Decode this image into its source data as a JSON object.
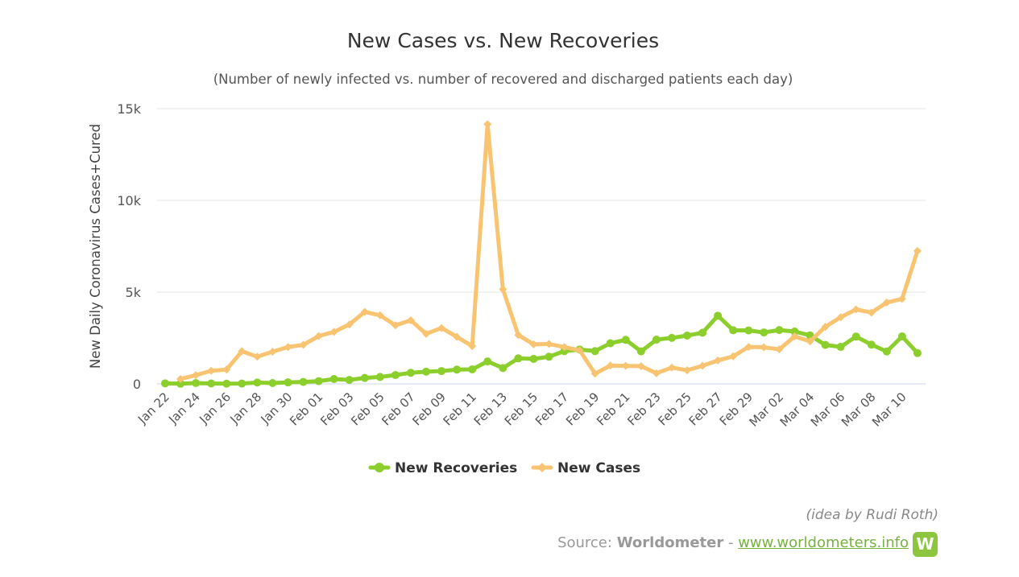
{
  "chart_data": {
    "type": "line",
    "title": "New Cases vs. New Recoveries",
    "subtitle": "(Number of newly infected vs. number of recovered and discharged patients each day)",
    "ylabel": "New Daily Coronavirus Cases+Cured",
    "xlabel": "",
    "ylim": [
      0,
      15000
    ],
    "yticks": [
      0,
      5000,
      10000,
      15000
    ],
    "ytick_labels": [
      "0",
      "5k",
      "10k",
      "15k"
    ],
    "x": [
      "Jan 22",
      "Jan 23",
      "Jan 24",
      "Jan 25",
      "Jan 26",
      "Jan 27",
      "Jan 28",
      "Jan 29",
      "Jan 30",
      "Jan 31",
      "Feb 01",
      "Feb 02",
      "Feb 03",
      "Feb 04",
      "Feb 05",
      "Feb 06",
      "Feb 07",
      "Feb 08",
      "Feb 09",
      "Feb 10",
      "Feb 11",
      "Feb 12",
      "Feb 13",
      "Feb 14",
      "Feb 15",
      "Feb 16",
      "Feb 17",
      "Feb 18",
      "Feb 19",
      "Feb 20",
      "Feb 21",
      "Feb 22",
      "Feb 23",
      "Feb 24",
      "Feb 25",
      "Feb 26",
      "Feb 27",
      "Feb 28",
      "Feb 29",
      "Mar 01",
      "Mar 02",
      "Mar 03",
      "Mar 04",
      "Mar 05",
      "Mar 06",
      "Mar 07",
      "Mar 08",
      "Mar 09",
      "Mar 10",
      "Mar 11"
    ],
    "xtick_labels": [
      "Jan 22",
      "Jan 24",
      "Jan 26",
      "Jan 28",
      "Jan 30",
      "Feb 01",
      "Feb 03",
      "Feb 05",
      "Feb 07",
      "Feb 09",
      "Feb 11",
      "Feb 13",
      "Feb 15",
      "Feb 17",
      "Feb 19",
      "Feb 21",
      "Feb 23",
      "Feb 25",
      "Feb 27",
      "Feb 29",
      "Mar 02",
      "Mar 04",
      "Mar 06",
      "Mar 08",
      "Mar 10"
    ],
    "grid": true,
    "legend_position": "bottom-center",
    "series": [
      {
        "name": "New Recoveries",
        "color": "#8cce2c",
        "marker": "circle",
        "values": [
          28,
          9,
          43,
          21,
          10,
          19,
          72,
          45,
          80,
          106,
          147,
          262,
          216,
          322,
          376,
          481,
          604,
          664,
          699,
          776,
          791,
          1223,
          863,
          1390,
          1361,
          1478,
          1786,
          1871,
          1786,
          2213,
          2399,
          1772,
          2411,
          2505,
          2633,
          2786,
          3713,
          2920,
          2913,
          2803,
          2932,
          2851,
          2644,
          2123,
          2015,
          2579,
          2139,
          1766,
          2586,
          1678
        ]
      },
      {
        "name": "New Cases",
        "color": "#f8c471",
        "marker": "diamond",
        "values": [
          null,
          265,
          475,
          712,
          778,
          1780,
          1478,
          1755,
          2005,
          2127,
          2603,
          2836,
          3237,
          3921,
          3737,
          3192,
          3463,
          2726,
          3045,
          2562,
          2056,
          14152,
          5153,
          2663,
          2152,
          2176,
          2004,
          1830,
          554,
          998,
          984,
          965,
          578,
          889,
          741,
          985,
          1276,
          1500,
          2012,
          1993,
          1880,
          2585,
          2318,
          3110,
          3632,
          4057,
          3884,
          4435,
          4632,
          7243
        ]
      }
    ]
  },
  "credit": {
    "idea": "(idea by Rudi Roth)",
    "source_prefix": "Source:",
    "source_name": "Worldometer",
    "separator": "-",
    "source_link": "www.worldometers.info",
    "logo_letter": "W"
  }
}
